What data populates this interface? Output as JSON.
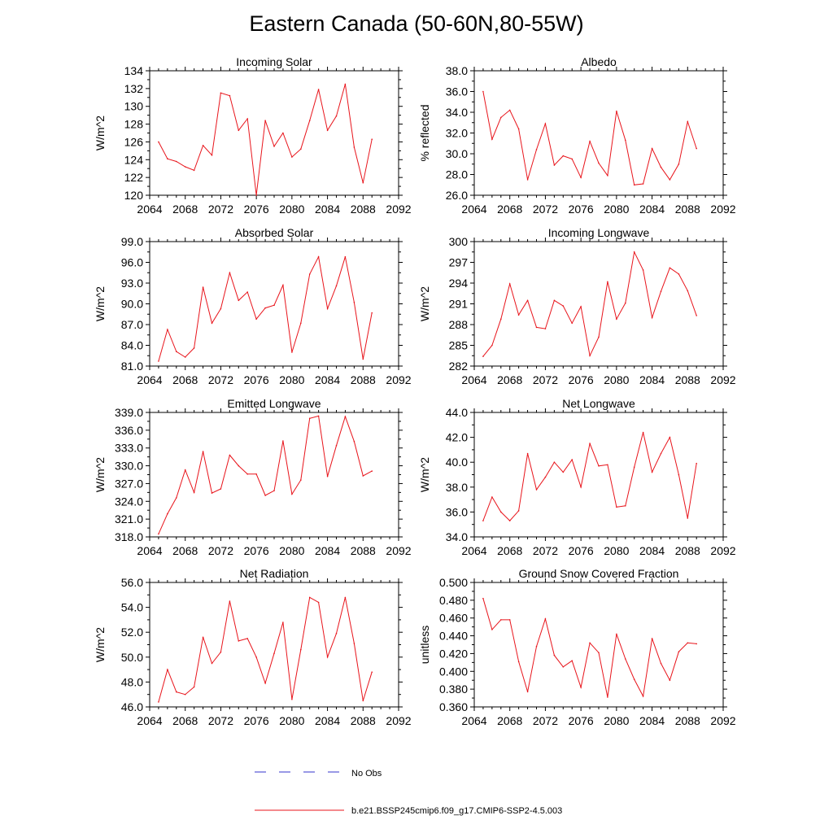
{
  "figure_title": "Eastern Canada (50-60N,80-55W)",
  "legend": {
    "obs_label": "No Obs",
    "obs_color": "#3333cc",
    "model_label": "b.e21.BSSP245cmip6.f09_g17.CMIP6-SSP2-4.5.003",
    "model_color": "#e8141b"
  },
  "chart_data": [
    {
      "type": "line",
      "title": "Incoming Solar",
      "xlabel": "",
      "ylabel": "W/m^2",
      "xlim": [
        2064,
        2092
      ],
      "ylim": [
        120,
        134
      ],
      "xticks": [
        2064,
        2068,
        2072,
        2076,
        2080,
        2084,
        2088,
        2092
      ],
      "yticks": [
        "120",
        "122",
        "124",
        "126",
        "128",
        "130",
        "132",
        "134"
      ],
      "series": [
        {
          "name": "b.e21.BSSP245cmip6.f09_g17.CMIP6-SSP2-4.5.003",
          "x": [
            2065,
            2066,
            2067,
            2068,
            2069,
            2070,
            2071,
            2072,
            2073,
            2074,
            2075,
            2076,
            2077,
            2078,
            2079,
            2080,
            2081,
            2082,
            2083,
            2084,
            2085,
            2086,
            2087,
            2088,
            2089
          ],
          "values": [
            126.0,
            124.1,
            123.8,
            123.2,
            122.8,
            125.6,
            124.5,
            131.5,
            131.2,
            127.3,
            128.6,
            120.0,
            128.4,
            125.5,
            127.0,
            124.3,
            125.2,
            128.4,
            131.9,
            127.3,
            128.9,
            132.5,
            125.4,
            121.4,
            126.3
          ]
        }
      ]
    },
    {
      "type": "line",
      "title": "Albedo",
      "xlabel": "",
      "ylabel": "% reflected",
      "xlim": [
        2064,
        2092
      ],
      "ylim": [
        26,
        38
      ],
      "xticks": [
        2064,
        2068,
        2072,
        2076,
        2080,
        2084,
        2088,
        2092
      ],
      "yticks": [
        "26.0",
        "28.0",
        "30.0",
        "32.0",
        "34.0",
        "36.0",
        "38.0"
      ],
      "series": [
        {
          "name": "b.e21.BSSP245cmip6.f09_g17.CMIP6-SSP2-4.5.003",
          "x": [
            2065,
            2066,
            2067,
            2068,
            2069,
            2070,
            2071,
            2072,
            2073,
            2074,
            2075,
            2076,
            2077,
            2078,
            2079,
            2080,
            2081,
            2082,
            2083,
            2084,
            2085,
            2086,
            2087,
            2088,
            2089
          ],
          "values": [
            36.0,
            31.4,
            33.5,
            34.2,
            32.4,
            27.5,
            30.4,
            32.9,
            28.9,
            29.8,
            29.5,
            27.7,
            31.2,
            29.1,
            27.9,
            34.1,
            31.3,
            27.0,
            27.1,
            30.5,
            28.7,
            27.5,
            29.0,
            33.1,
            30.5
          ]
        }
      ]
    },
    {
      "type": "line",
      "title": "Absorbed Solar",
      "xlabel": "",
      "ylabel": "W/m^2",
      "xlim": [
        2064,
        2092
      ],
      "ylim": [
        81,
        99
      ],
      "xticks": [
        2064,
        2068,
        2072,
        2076,
        2080,
        2084,
        2088,
        2092
      ],
      "yticks": [
        "81.0",
        "84.0",
        "87.0",
        "90.0",
        "93.0",
        "96.0",
        "99.0"
      ],
      "series": [
        {
          "name": "b.e21.BSSP245cmip6.f09_g17.CMIP6-SSP2-4.5.003",
          "x": [
            2065,
            2066,
            2067,
            2068,
            2069,
            2070,
            2071,
            2072,
            2073,
            2074,
            2075,
            2076,
            2077,
            2078,
            2079,
            2080,
            2081,
            2082,
            2083,
            2084,
            2085,
            2086,
            2087,
            2088,
            2089
          ],
          "values": [
            81.7,
            86.3,
            83.1,
            82.3,
            83.6,
            92.4,
            87.2,
            89.3,
            94.5,
            90.5,
            91.7,
            87.8,
            89.4,
            89.8,
            92.7,
            83.0,
            87.2,
            94.3,
            96.8,
            89.3,
            92.6,
            96.8,
            90.2,
            82.0,
            88.7
          ]
        }
      ]
    },
    {
      "type": "line",
      "title": "Incoming Longwave",
      "xlabel": "",
      "ylabel": "W/m^2",
      "xlim": [
        2064,
        2092
      ],
      "ylim": [
        282,
        300
      ],
      "xticks": [
        2064,
        2068,
        2072,
        2076,
        2080,
        2084,
        2088,
        2092
      ],
      "yticks": [
        "282",
        "285",
        "288",
        "291",
        "294",
        "297",
        "300"
      ],
      "series": [
        {
          "name": "b.e21.BSSP245cmip6.f09_g17.CMIP6-SSP2-4.5.003",
          "x": [
            2065,
            2066,
            2067,
            2068,
            2069,
            2070,
            2071,
            2072,
            2073,
            2074,
            2075,
            2076,
            2077,
            2078,
            2079,
            2080,
            2081,
            2082,
            2083,
            2084,
            2085,
            2086,
            2087,
            2088,
            2089
          ],
          "values": [
            283.4,
            285.0,
            288.8,
            293.9,
            289.4,
            291.5,
            287.6,
            287.4,
            291.5,
            290.7,
            288.2,
            290.6,
            283.5,
            286.2,
            294.2,
            288.8,
            291.1,
            298.5,
            295.9,
            289.0,
            292.8,
            296.2,
            295.3,
            292.9,
            289.3
          ]
        }
      ]
    },
    {
      "type": "line",
      "title": "Emitted Longwave",
      "xlabel": "",
      "ylabel": "W/m^2",
      "xlim": [
        2064,
        2092
      ],
      "ylim": [
        318,
        339
      ],
      "xticks": [
        2064,
        2068,
        2072,
        2076,
        2080,
        2084,
        2088,
        2092
      ],
      "yticks": [
        "318.0",
        "321.0",
        "324.0",
        "327.0",
        "330.0",
        "333.0",
        "336.0",
        "339.0"
      ],
      "series": [
        {
          "name": "b.e21.BSSP245cmip6.f09_g17.CMIP6-SSP2-4.5.003",
          "x": [
            2065,
            2066,
            2067,
            2068,
            2069,
            2070,
            2071,
            2072,
            2073,
            2074,
            2075,
            2076,
            2077,
            2078,
            2079,
            2080,
            2081,
            2082,
            2083,
            2084,
            2085,
            2086,
            2087,
            2088,
            2089
          ],
          "values": [
            318.5,
            321.9,
            324.6,
            329.3,
            325.5,
            332.4,
            325.4,
            326.1,
            331.8,
            330.0,
            328.6,
            328.6,
            325.0,
            325.8,
            334.2,
            325.2,
            327.6,
            338.0,
            338.4,
            328.2,
            333.4,
            338.3,
            334.1,
            328.3,
            329.1
          ]
        }
      ]
    },
    {
      "type": "line",
      "title": "Net Longwave",
      "xlabel": "",
      "ylabel": "W/m^2",
      "xlim": [
        2064,
        2092
      ],
      "ylim": [
        34,
        44
      ],
      "xticks": [
        2064,
        2068,
        2072,
        2076,
        2080,
        2084,
        2088,
        2092
      ],
      "yticks": [
        "34.0",
        "36.0",
        "38.0",
        "40.0",
        "42.0",
        "44.0"
      ],
      "series": [
        {
          "name": "b.e21.BSSP245cmip6.f09_g17.CMIP6-SSP2-4.5.003",
          "x": [
            2065,
            2066,
            2067,
            2068,
            2069,
            2070,
            2071,
            2072,
            2073,
            2074,
            2075,
            2076,
            2077,
            2078,
            2079,
            2080,
            2081,
            2082,
            2083,
            2084,
            2085,
            2086,
            2087,
            2088,
            2089
          ],
          "values": [
            35.3,
            37.2,
            36.0,
            35.3,
            36.1,
            40.7,
            37.8,
            38.8,
            40.0,
            39.2,
            40.2,
            38.0,
            41.5,
            39.7,
            39.8,
            36.4,
            36.5,
            39.6,
            42.4,
            39.2,
            40.7,
            42.0,
            39.0,
            35.5,
            39.9
          ]
        }
      ]
    },
    {
      "type": "line",
      "title": "Net Radiation",
      "xlabel": "",
      "ylabel": "W/m^2",
      "xlim": [
        2064,
        2092
      ],
      "ylim": [
        46,
        56
      ],
      "xticks": [
        2064,
        2068,
        2072,
        2076,
        2080,
        2084,
        2088,
        2092
      ],
      "yticks": [
        "46.0",
        "48.0",
        "50.0",
        "52.0",
        "54.0",
        "56.0"
      ],
      "series": [
        {
          "name": "b.e21.BSSP245cmip6.f09_g17.CMIP6-SSP2-4.5.003",
          "x": [
            2065,
            2066,
            2067,
            2068,
            2069,
            2070,
            2071,
            2072,
            2073,
            2074,
            2075,
            2076,
            2077,
            2078,
            2079,
            2080,
            2081,
            2082,
            2083,
            2084,
            2085,
            2086,
            2087,
            2088,
            2089
          ],
          "values": [
            46.4,
            49.0,
            47.2,
            47.0,
            47.6,
            51.6,
            49.5,
            50.4,
            54.5,
            51.3,
            51.5,
            50.0,
            47.9,
            50.3,
            52.8,
            46.6,
            50.6,
            54.8,
            54.4,
            50.0,
            51.9,
            54.8,
            51.1,
            46.5,
            48.8
          ]
        }
      ]
    },
    {
      "type": "line",
      "title": "Ground Snow Covered Fraction",
      "xlabel": "",
      "ylabel": "unitless",
      "xlim": [
        2064,
        2092
      ],
      "ylim": [
        0.36,
        0.5
      ],
      "xticks": [
        2064,
        2068,
        2072,
        2076,
        2080,
        2084,
        2088,
        2092
      ],
      "yticks": [
        "0.360",
        "0.380",
        "0.400",
        "0.420",
        "0.440",
        "0.460",
        "0.480",
        "0.500"
      ],
      "series": [
        {
          "name": "b.e21.BSSP245cmip6.f09_g17.CMIP6-SSP2-4.5.003",
          "x": [
            2065,
            2066,
            2067,
            2068,
            2069,
            2070,
            2071,
            2072,
            2073,
            2074,
            2075,
            2076,
            2077,
            2078,
            2079,
            2080,
            2081,
            2082,
            2083,
            2084,
            2085,
            2086,
            2087,
            2088,
            2089
          ],
          "values": [
            0.482,
            0.447,
            0.458,
            0.458,
            0.411,
            0.377,
            0.428,
            0.459,
            0.418,
            0.405,
            0.412,
            0.382,
            0.432,
            0.421,
            0.371,
            0.442,
            0.414,
            0.391,
            0.372,
            0.437,
            0.409,
            0.39,
            0.422,
            0.432,
            0.431
          ]
        }
      ]
    }
  ]
}
